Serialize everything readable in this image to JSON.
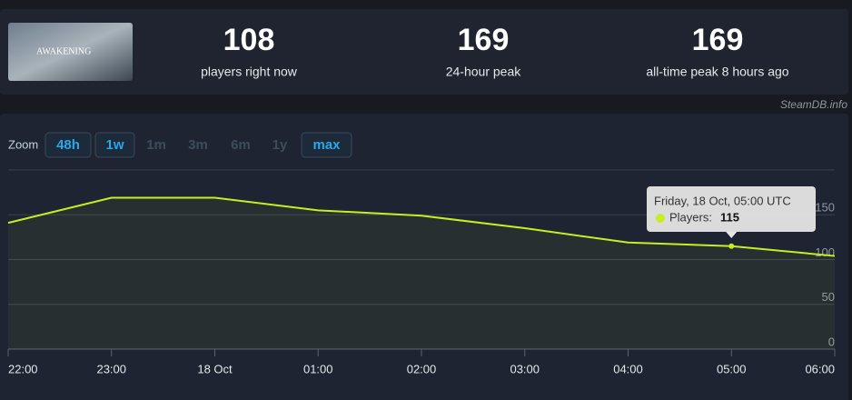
{
  "header": {
    "stats": [
      {
        "value": "108",
        "label": "players right now"
      },
      {
        "value": "169",
        "label": "24-hour peak"
      },
      {
        "value": "169",
        "label": "all-time peak 8 hours ago"
      }
    ],
    "image_title": "AWAKENING",
    "source": "SteamDB.info"
  },
  "zoom": {
    "label": "Zoom",
    "buttons": [
      {
        "label": "48h",
        "enabled": true
      },
      {
        "label": "1w",
        "enabled": true
      },
      {
        "label": "1m",
        "enabled": false
      },
      {
        "label": "3m",
        "enabled": false
      },
      {
        "label": "6m",
        "enabled": false
      },
      {
        "label": "1y",
        "enabled": false
      },
      {
        "label": "max",
        "enabled": true
      }
    ]
  },
  "chart_data": {
    "type": "line",
    "categories": [
      "22:00",
      "23:00",
      "18 Oct",
      "01:00",
      "02:00",
      "03:00",
      "04:00",
      "05:00",
      "06:00"
    ],
    "series": [
      {
        "name": "Players",
        "color": "#c7ee22",
        "values": [
          141,
          169,
          169,
          155,
          149,
          135,
          119,
          115,
          104
        ]
      }
    ],
    "ylim": [
      0,
      200
    ],
    "yticks": [
      0,
      50,
      100,
      150
    ],
    "grid": true,
    "tooltip": {
      "title": "Friday, 18 Oct, 05:00 UTC",
      "label": "Players:"
    }
  }
}
